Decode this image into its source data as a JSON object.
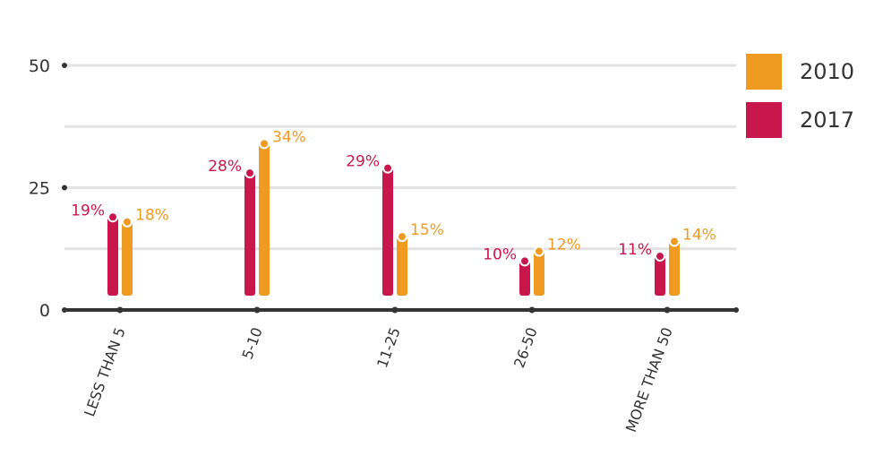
{
  "chart_data": {
    "type": "bar",
    "categories": [
      "LESS THAN 5",
      "5-10",
      "11-25",
      "26-50",
      "MORE THAN 50"
    ],
    "series": [
      {
        "name": "2017",
        "color": "#c8174c",
        "values": [
          19,
          28,
          29,
          10,
          11
        ],
        "labels": [
          "19%",
          "28%",
          "29%",
          "10%",
          "11%"
        ]
      },
      {
        "name": "2010",
        "color": "#ef9a21",
        "values": [
          18,
          34,
          15,
          12,
          14
        ],
        "labels": [
          "18%",
          "34%",
          "15%",
          "12%",
          "14%"
        ]
      }
    ],
    "yticks": [
      0,
      25,
      50
    ],
    "ylim": [
      0,
      50
    ],
    "grid": true,
    "legend_position": "right",
    "legend_order": [
      "2010",
      "2017"
    ],
    "title": "",
    "xlabel": "",
    "ylabel": ""
  }
}
